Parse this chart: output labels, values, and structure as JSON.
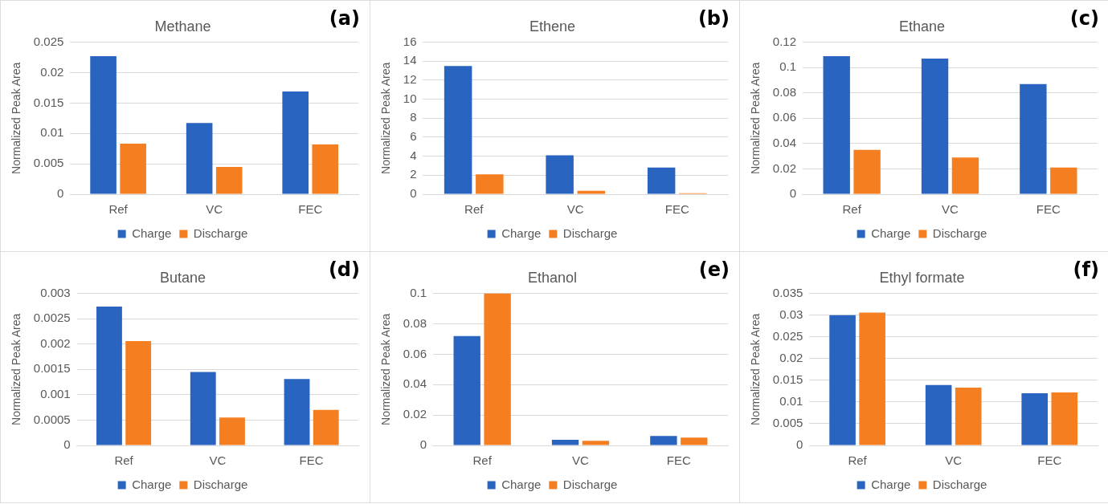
{
  "chart_data": [
    {
      "type": "bar",
      "title": "Methane",
      "ylabel": "Normalized Peak Area",
      "annotations": [
        "(a)"
      ],
      "categories": [
        "Ref",
        "VC",
        "FEC"
      ],
      "series": [
        {
          "name": "Charge",
          "color": "#2964c0",
          "values": [
            0.0227,
            0.0117,
            0.0169
          ]
        },
        {
          "name": "Discharge",
          "color": "#f47e20",
          "values": [
            0.0083,
            0.0045,
            0.0082
          ]
        }
      ],
      "ylim": [
        0,
        0.025
      ],
      "yticks": [
        0,
        0.005,
        0.01,
        0.015,
        0.02,
        0.025
      ],
      "grid": "y",
      "legend": "bottom"
    },
    {
      "type": "bar",
      "title": "Ethene",
      "ylabel": "Normalized Peak Area",
      "annotations": [
        "(b)"
      ],
      "categories": [
        "Ref",
        "VC",
        "FEC"
      ],
      "series": [
        {
          "name": "Charge",
          "color": "#2964c0",
          "values": [
            13.5,
            4.1,
            2.8
          ]
        },
        {
          "name": "Discharge",
          "color": "#f47e20",
          "values": [
            2.1,
            0.35,
            0.1
          ]
        }
      ],
      "ylim": [
        0,
        16
      ],
      "yticks": [
        0,
        2,
        4,
        6,
        8,
        10,
        12,
        14,
        16
      ],
      "grid": "y",
      "legend": "bottom"
    },
    {
      "type": "bar",
      "title": "Ethane",
      "ylabel": "Normalized Peak Area",
      "annotations": [
        "(c)"
      ],
      "categories": [
        "Ref",
        "VC",
        "FEC"
      ],
      "series": [
        {
          "name": "Charge",
          "color": "#2964c0",
          "values": [
            0.109,
            0.107,
            0.087
          ]
        },
        {
          "name": "Discharge",
          "color": "#f47e20",
          "values": [
            0.035,
            0.029,
            0.021
          ]
        }
      ],
      "ylim": [
        0,
        0.12
      ],
      "yticks": [
        0,
        0.02,
        0.04,
        0.06,
        0.08,
        0.1,
        0.12
      ],
      "grid": "y",
      "legend": "bottom"
    },
    {
      "type": "bar",
      "title": "Butane",
      "ylabel": "Normalized Peak Area",
      "annotations": [
        "(d)"
      ],
      "categories": [
        "Ref",
        "VC",
        "FEC"
      ],
      "series": [
        {
          "name": "Charge",
          "color": "#2964c0",
          "values": [
            0.00274,
            0.00145,
            0.00131
          ]
        },
        {
          "name": "Discharge",
          "color": "#f47e20",
          "values": [
            0.00206,
            0.00055,
            0.0007
          ]
        }
      ],
      "ylim": [
        0,
        0.003
      ],
      "yticks": [
        0,
        0.0005,
        0.001,
        0.0015,
        0.002,
        0.0025,
        0.003
      ],
      "grid": "y",
      "legend": "bottom"
    },
    {
      "type": "bar",
      "title": "Ethanol",
      "ylabel": "Normalized Peak Area",
      "annotations": [
        "(e)"
      ],
      "categories": [
        "Ref",
        "VC",
        "FEC"
      ],
      "series": [
        {
          "name": "Charge",
          "color": "#2964c0",
          "values": [
            0.072,
            0.0037,
            0.0062
          ]
        },
        {
          "name": "Discharge",
          "color": "#f47e20",
          "values": [
            0.1,
            0.003,
            0.0052
          ]
        }
      ],
      "ylim": [
        0,
        0.1
      ],
      "yticks": [
        0,
        0.02,
        0.04,
        0.06,
        0.08,
        0.1
      ],
      "grid": "y",
      "legend": "bottom"
    },
    {
      "type": "bar",
      "title": "Ethyl formate",
      "ylabel": "Normalized Peak Area",
      "annotations": [
        "(f)"
      ],
      "categories": [
        "Ref",
        "VC",
        "FEC"
      ],
      "series": [
        {
          "name": "Charge",
          "color": "#2964c0",
          "values": [
            0.03,
            0.0139,
            0.012
          ]
        },
        {
          "name": "Discharge",
          "color": "#f47e20",
          "values": [
            0.0306,
            0.0133,
            0.0122
          ]
        }
      ],
      "ylim": [
        0,
        0.035
      ],
      "yticks": [
        0,
        0.005,
        0.01,
        0.015,
        0.02,
        0.025,
        0.03,
        0.035
      ],
      "grid": "y",
      "legend": "bottom"
    }
  ]
}
